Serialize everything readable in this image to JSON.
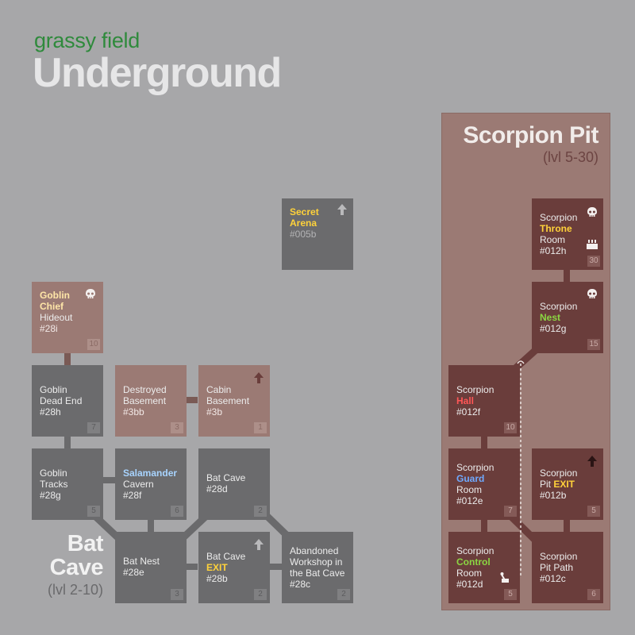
{
  "header": {
    "region": "grassy field",
    "title": "Underground"
  },
  "scorpion_pit": {
    "title": "Scorpion Pit",
    "level": "(lvl 5-30)"
  },
  "bat_cave": {
    "title_line1": "Bat",
    "title_line2": "Cave",
    "level": "(lvl 2-10)"
  },
  "colors": {
    "background": "#a7a7a9",
    "room_grey": "#6b6b6d",
    "room_brown": "#9b7a74",
    "room_pit": "#6a3d3b",
    "region_green": "#2f8a3c"
  },
  "rooms": {
    "secret_arena": {
      "l1": "Secret",
      "l2": "Arena",
      "code": "#005b",
      "icon": "up-arrow-icon"
    },
    "goblin_chief": {
      "l1": "Goblin",
      "l2": "Chief",
      "l3": "Hideout",
      "code": "#28i",
      "level": "10",
      "icon": "skull-icon"
    },
    "goblin_dead_end": {
      "l1": "Goblin",
      "l2": "Dead End",
      "code": "#28h",
      "level": "7"
    },
    "destroyed_basement": {
      "l1": "Destroyed",
      "l2": "Basement",
      "code": "#3bb",
      "level": "3"
    },
    "cabin_basement": {
      "l1": "Cabin",
      "l2": "Basement",
      "code": "#3b",
      "level": "1",
      "icon": "up-arrow-icon"
    },
    "goblin_tracks": {
      "l1": "Goblin",
      "l2": "Tracks",
      "code": "#28g",
      "level": "5"
    },
    "salamander_cavern": {
      "l1": "Salamander",
      "l2": "Cavern",
      "code": "#28f",
      "level": "6"
    },
    "bat_cave_28d": {
      "l1": "Bat Cave",
      "code": "#28d",
      "level": "2"
    },
    "bat_nest": {
      "l1": "Bat Nest",
      "code": "#28e",
      "level": "3"
    },
    "bat_cave_exit": {
      "l1": "Bat Cave",
      "l2": "EXIT",
      "code": "#28b",
      "level": "2",
      "icon": "up-arrow-icon"
    },
    "abandoned_workshop": {
      "l1": "Abandoned",
      "l2": "Workshop in",
      "l3": "the Bat Cave",
      "code": "#28c",
      "level": "2"
    },
    "scorpion_throne": {
      "l1": "Scorpion",
      "l2": "Throne",
      "l3": "Room",
      "code": "#012h",
      "level": "30",
      "icon": "skull-icon"
    },
    "scorpion_nest": {
      "l1": "Scorpion",
      "l2": "Nest",
      "code": "#012g",
      "level": "15",
      "icon": "skull-icon"
    },
    "scorpion_hall": {
      "l1": "Scorpion",
      "l2": "Hall",
      "code": "#012f",
      "level": "10"
    },
    "scorpion_guard": {
      "l1": "Scorpion",
      "l2": "Guard",
      "l3": "Room",
      "code": "#012e",
      "level": "7"
    },
    "scorpion_pit_exit": {
      "l1": "Scorpion",
      "l2": "Pit EXIT",
      "code": "#012b",
      "level": "5",
      "icon": "up-arrow-icon"
    },
    "scorpion_control": {
      "l1": "Scorpion",
      "l2": "Control",
      "l3": "Room",
      "code": "#012d",
      "level": "5",
      "icon": "lever-icon"
    },
    "scorpion_pit_path": {
      "l1": "Scorpion",
      "l2": "Pit Path",
      "code": "#012c",
      "level": "6"
    }
  }
}
